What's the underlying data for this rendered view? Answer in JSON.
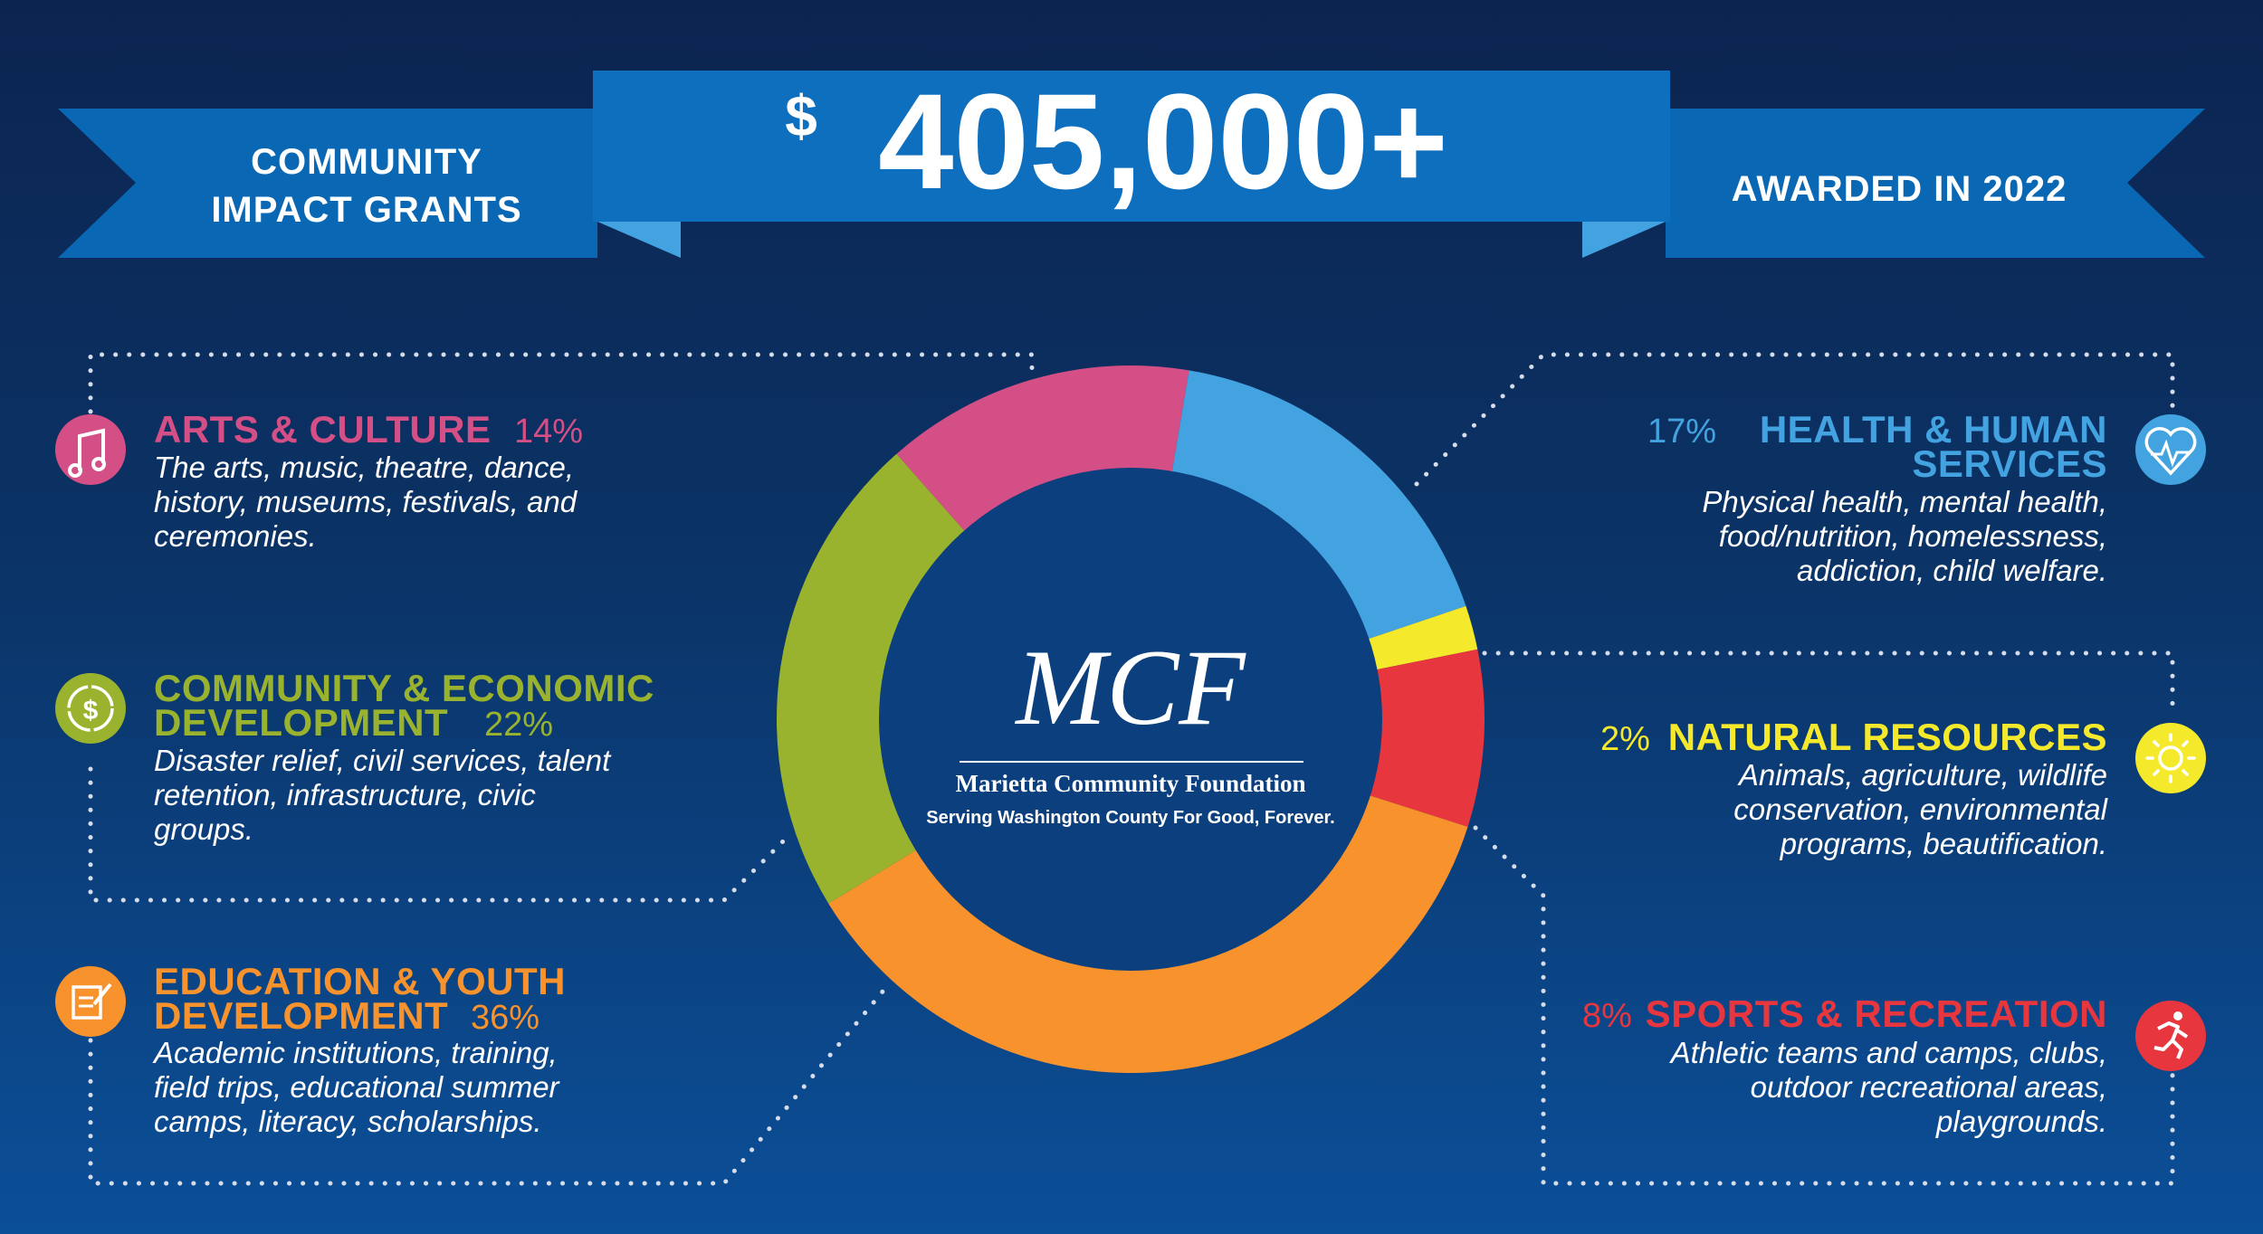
{
  "banner": {
    "left_line1": "COMMUNITY",
    "left_line2": "IMPACT GRANTS",
    "currency": "$",
    "amount": "405,000+",
    "right": "AWARDED IN 2022"
  },
  "logo": {
    "monogram": "MCF",
    "name": "Marietta Community Foundation",
    "tagline": "Serving Washington County For Good, Forever."
  },
  "categories": {
    "arts": {
      "title": "ARTS & CULTURE",
      "pct": "14%",
      "desc": [
        "The arts, music, theatre, dance,",
        "history, museums, festivals, and",
        "ceremonies."
      ],
      "color": "#d44f86",
      "icon": "music-note-icon"
    },
    "community": {
      "title1": "COMMUNITY & ECONOMIC",
      "title2": "DEVELOPMENT",
      "pct": "22%",
      "desc": [
        "Disaster relief, civil services, talent",
        "retention, infrastructure, civic",
        "groups."
      ],
      "color": "#9ab32e",
      "icon": "dollar-cycle-icon"
    },
    "education": {
      "title1": "EDUCATION & YOUTH",
      "title2": "DEVELOPMENT",
      "pct": "36%",
      "desc": [
        "Academic institutions, training,",
        "field trips, educational summer",
        "camps, literacy, scholarships."
      ],
      "color": "#f7922c",
      "icon": "notepad-pencil-icon"
    },
    "health": {
      "title1": "HEALTH & HUMAN",
      "title2": "SERVICES",
      "pct": "17%",
      "desc": [
        "Physical health, mental health,",
        "food/nutrition, homelessness,",
        "addiction, child welfare."
      ],
      "color": "#43a3e0",
      "icon": "heart-pulse-icon"
    },
    "natural": {
      "title": "NATURAL RESOURCES",
      "pct": "2%",
      "desc": [
        "Animals, agriculture, wildlife",
        "conservation, environmental",
        "programs, beautification."
      ],
      "color": "#f5e92b",
      "icon": "sun-icon"
    },
    "sports": {
      "title": "SPORTS & RECREATION",
      "pct": "8%",
      "desc": [
        "Athletic teams and camps, clubs,",
        "outdoor recreational areas,",
        "playgrounds."
      ],
      "color": "#e8363f",
      "icon": "runner-icon"
    }
  },
  "chart_data": {
    "type": "pie",
    "title": "",
    "categories": [
      "Arts & Culture",
      "Health & Human Services",
      "Natural Resources",
      "Sports & Recreation",
      "Education & Youth Development",
      "Community & Economic Development"
    ],
    "values": [
      14,
      17,
      2,
      8,
      36,
      22
    ],
    "colors": [
      "#d44f86",
      "#43a3e0",
      "#f5e92b",
      "#e8363f",
      "#f7922c",
      "#9ab32e"
    ],
    "unit": "%",
    "donut": true
  }
}
